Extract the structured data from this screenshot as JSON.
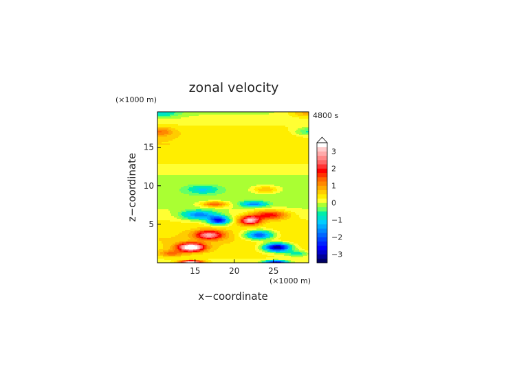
{
  "chart_data": {
    "type": "heatmap",
    "title": "zonal velocity",
    "xlabel": "x−coordinate",
    "ylabel": "z−coordinate",
    "x_unit": "(×1000 m)",
    "z_unit": "(×1000 m)",
    "time_label": "4800 s",
    "xlim": [
      10.2,
      29.5
    ],
    "ylim": [
      0,
      19.6
    ],
    "x_ticks": [
      15,
      20,
      25
    ],
    "y_ticks": [
      5,
      10,
      15
    ],
    "colorbar": {
      "levels": [
        -3.5,
        -3.25,
        -3,
        -2.75,
        -2.5,
        -2.25,
        -2,
        -1.75,
        -1.5,
        -1.25,
        -1,
        -0.75,
        -0.5,
        -0.25,
        0,
        0.25,
        0.5,
        0.75,
        1,
        1.25,
        1.5,
        1.75,
        2,
        2.25,
        2.5,
        2.75,
        3,
        3.25,
        3.5
      ],
      "tick_labels": [
        "3",
        "2",
        "1",
        "0",
        "−1",
        "−2",
        "−3"
      ],
      "tick_values": [
        3,
        2,
        1,
        0,
        -1,
        -2,
        -3
      ],
      "extend": "max"
    },
    "colors": [
      "#000066",
      "#000099",
      "#0000cc",
      "#0000ff",
      "#0022ff",
      "#0044ff",
      "#0066ff",
      "#0088ff",
      "#00aaff",
      "#00ccff",
      "#00e0cc",
      "#00eeaa",
      "#66ff66",
      "#aaff33",
      "#ffff33",
      "#ffee00",
      "#ffcc00",
      "#ffaa00",
      "#ff8800",
      "#ff6600",
      "#ff3300",
      "#ff0000",
      "#ff3333",
      "#ff6666",
      "#ff8888",
      "#ffaaaa",
      "#ffcccc",
      "#ffffff"
    ],
    "features": [
      {
        "x": 14.5,
        "z": 2.0,
        "amp": 3.6,
        "sx": 1.7,
        "sz": 0.55
      },
      {
        "x": 25.5,
        "z": 2.0,
        "amp": -3.6,
        "sx": 1.7,
        "sz": 0.55
      },
      {
        "x": 14.5,
        "z": 0.05,
        "amp": 3.4,
        "sx": 1.4,
        "sz": 0.25
      },
      {
        "x": 25.3,
        "z": 0.05,
        "amp": -3.0,
        "sx": 1.4,
        "sz": 0.25
      },
      {
        "x": 16.8,
        "z": 3.6,
        "amp": 2.4,
        "sx": 1.8,
        "sz": 0.6
      },
      {
        "x": 23.2,
        "z": 3.6,
        "amp": -2.4,
        "sx": 1.8,
        "sz": 0.6
      },
      {
        "x": 18.0,
        "z": 5.5,
        "amp": -2.8,
        "sx": 1.3,
        "sz": 0.55
      },
      {
        "x": 22.0,
        "z": 5.5,
        "amp": 2.8,
        "sx": 1.3,
        "sz": 0.55
      },
      {
        "x": 15.5,
        "z": 6.2,
        "amp": -1.8,
        "sx": 2.2,
        "sz": 0.6
      },
      {
        "x": 24.5,
        "z": 6.2,
        "amp": 1.8,
        "sx": 2.2,
        "sz": 0.6
      },
      {
        "x": 17.5,
        "z": 7.6,
        "amp": 1.6,
        "sx": 1.6,
        "sz": 0.35
      },
      {
        "x": 22.5,
        "z": 7.6,
        "amp": -1.6,
        "sx": 1.6,
        "sz": 0.35
      },
      {
        "x": 16.0,
        "z": 9.5,
        "amp": -0.9,
        "sx": 1.8,
        "sz": 0.5
      },
      {
        "x": 24.0,
        "z": 9.5,
        "amp": 0.9,
        "sx": 1.8,
        "sz": 0.5
      },
      {
        "x": 10.5,
        "z": 17.0,
        "amp": 0.9,
        "sx": 1.8,
        "sz": 0.6
      },
      {
        "x": 29.5,
        "z": 17.0,
        "amp": -0.9,
        "sx": 1.8,
        "sz": 0.6
      },
      {
        "x": 10.5,
        "z": 19.5,
        "amp": -0.9,
        "sx": 2.5,
        "sz": 0.6
      },
      {
        "x": 29.5,
        "z": 19.5,
        "amp": 0.9,
        "sx": 2.5,
        "sz": 0.6
      },
      {
        "x": 12.0,
        "z": 1.2,
        "amp": 1.0,
        "sx": 1.5,
        "sz": 0.4
      },
      {
        "x": 28.0,
        "z": 1.2,
        "amp": -1.0,
        "sx": 1.5,
        "sz": 0.4
      }
    ]
  }
}
